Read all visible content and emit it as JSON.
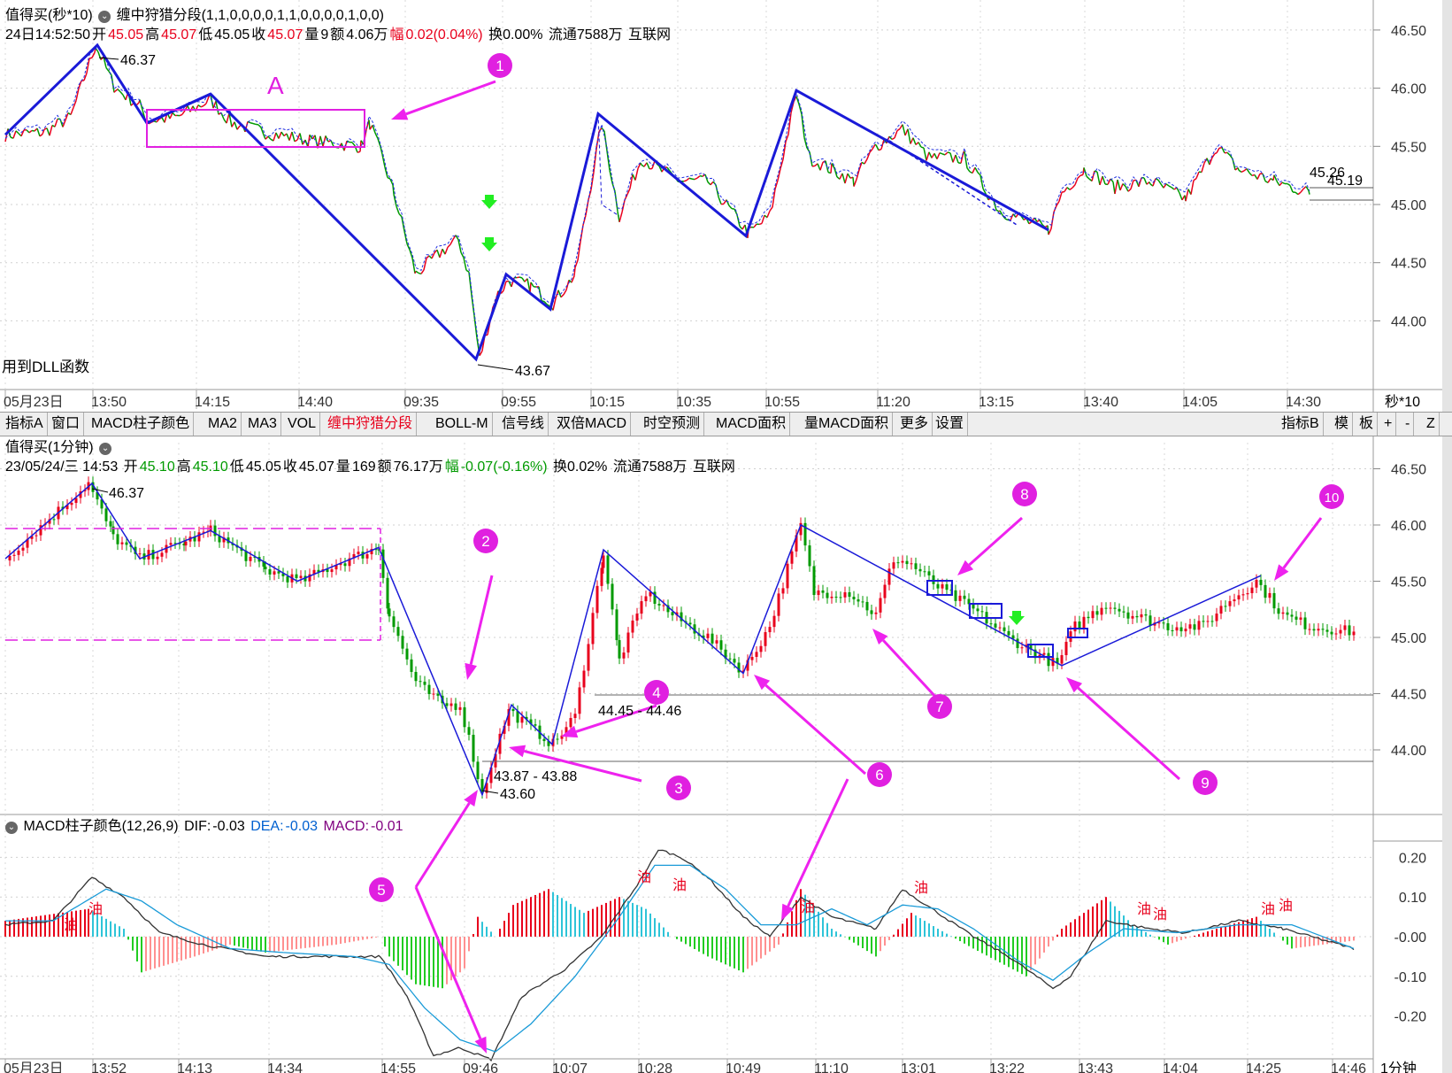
{
  "top_panel": {
    "title": "值得买(秒*10)",
    "indicator": "缠中狩猎分段(1,1,0,0,0,0,1,1,0,0,0,0,1,0,0)",
    "info": {
      "date": "24日14:52:50",
      "open_label": "开",
      "open": "45.05",
      "high_label": "高",
      "high": "45.07",
      "low_label": "低",
      "low": "45.05",
      "close_label": "收",
      "close": "45.07",
      "vol_label": "量",
      "vol": "9",
      "amt_label": "额",
      "amt": "4.06万",
      "chg_label": "幅",
      "chg": "0.02(0.04%)",
      "turn": "换0.00%",
      "float": "流通7588万",
      "sector": "互联网"
    },
    "note": "用到DLL函数",
    "box_label": "A",
    "y_ticks": [
      "46.50",
      "46.00",
      "45.50",
      "45.00",
      "44.50",
      "44.00"
    ],
    "x_ticks": [
      "05月23日",
      "13:50",
      "14:15",
      "14:40",
      "09:35",
      "09:55",
      "10:15",
      "10:35",
      "10:55",
      "11:20",
      "13:15",
      "13:40",
      "14:05",
      "14:30"
    ],
    "period": "秒*10",
    "labels": {
      "high": "46.37",
      "low": "43.67",
      "last1": "45.26",
      "last2": "45.19"
    }
  },
  "toolbar": {
    "items": [
      "指标A",
      "窗口",
      "MACD柱子颜色",
      "MA2",
      "MA3",
      "VOL",
      "缠中狩猎分段",
      "BOLL-M",
      "信号线",
      "双倍MACD",
      "时空预测",
      "MACD面积",
      "量MACD面积",
      "更多",
      "设置"
    ],
    "active": "缠中狩猎分段",
    "right_items": [
      "指标B",
      "模",
      "板",
      "+",
      "-",
      "Z"
    ]
  },
  "mid_panel": {
    "title": "值得买(1分钟)",
    "info": {
      "date": "23/05/24/三 14:53",
      "open_label": "开",
      "open": "45.10",
      "high_label": "高",
      "high": "45.10",
      "low_label": "低",
      "low": "45.05",
      "close_label": "收",
      "close": "45.07",
      "vol_label": "量",
      "vol": "169",
      "amt_label": "额",
      "amt": "76.17万",
      "chg_label": "幅",
      "chg": "-0.07(-0.16%)",
      "turn": "换0.02%",
      "float": "流通7588万",
      "sector": "互联网"
    },
    "y_ticks": [
      "46.50",
      "46.00",
      "45.50",
      "45.00",
      "44.50",
      "44.00"
    ],
    "labels": {
      "high": "46.37",
      "low": "43.60",
      "zone1": "43.87 - 43.88",
      "zone2": "44.45 - 44.46"
    }
  },
  "macd_panel": {
    "title": "MACD柱子颜色(12,26,9)",
    "dif_label": "DIF:",
    "dif": "-0.03",
    "dea_label": "DEA:",
    "dea": "-0.03",
    "macd_label": "MACD:",
    "macd": "-0.01",
    "y_ticks": [
      "0.20",
      "0.10",
      "-0.00",
      "-0.10",
      "-0.20"
    ],
    "x_ticks": [
      "05月23日",
      "13:52",
      "14:13",
      "14:34",
      "14:55",
      "09:46",
      "10:07",
      "10:28",
      "10:49",
      "11:10",
      "13:01",
      "13:22",
      "13:43",
      "14:04",
      "14:25",
      "14:46"
    ],
    "period": "1分钟",
    "markers": [
      "油",
      "油",
      "油",
      "油",
      "油",
      "油",
      "油",
      "油",
      "油",
      "油"
    ]
  },
  "annotations": [
    "1",
    "2",
    "3",
    "4",
    "5",
    "6",
    "7",
    "8",
    "9",
    "10"
  ],
  "colors": {
    "up": "#e8001c",
    "down": "#009a00",
    "zigzag": "#1a1ad8",
    "arrow": "#ee22ee",
    "dif": "#333333",
    "dea": "#1a9bd8",
    "macd_up": "#e8001c",
    "macd_up_light": "#2ec4d8",
    "macd_down": "#22cc22",
    "macd_down_light": "#ff9090"
  }
}
